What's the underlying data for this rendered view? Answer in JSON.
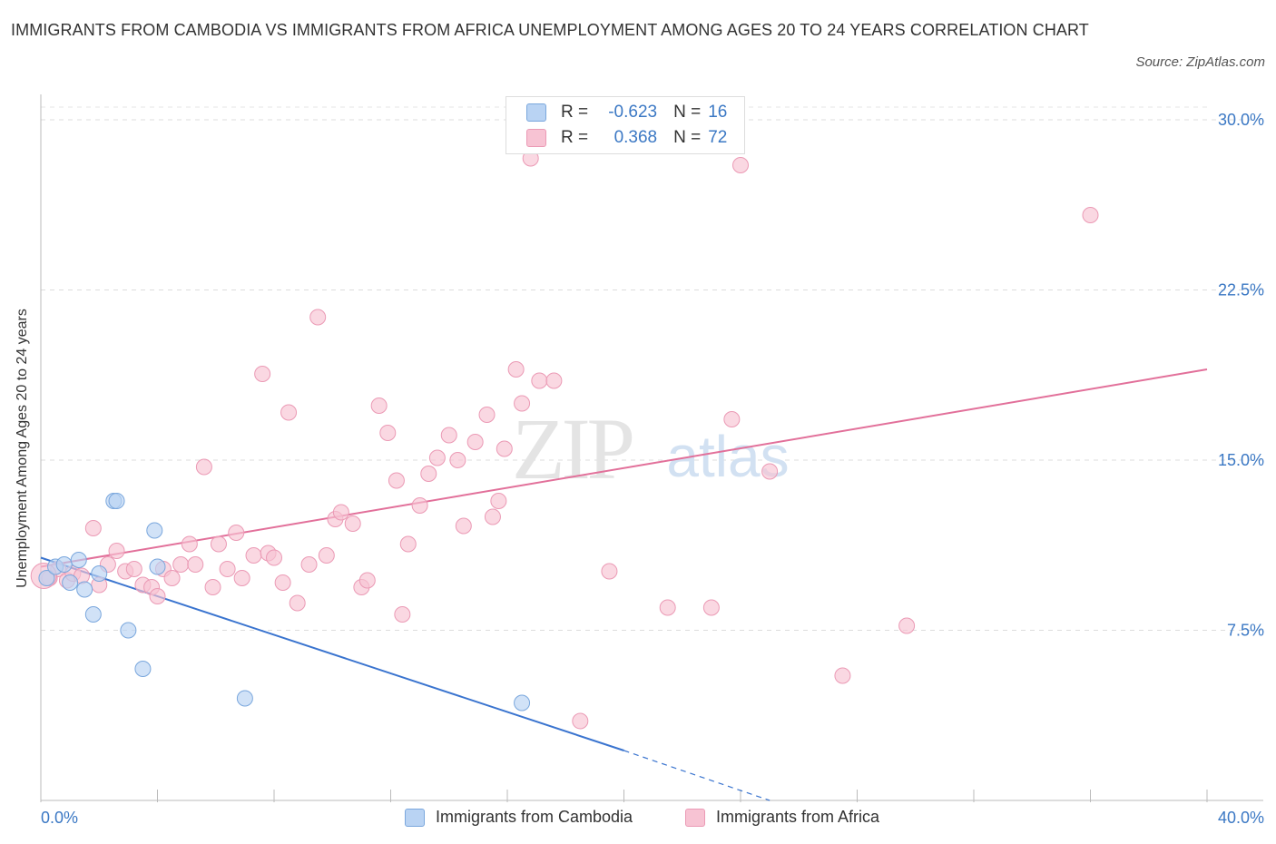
{
  "title": "IMMIGRANTS FROM CAMBODIA VS IMMIGRANTS FROM AFRICA UNEMPLOYMENT AMONG AGES 20 TO 24 YEARS CORRELATION CHART",
  "source": "Source: ZipAtlas.com",
  "watermark": {
    "zip": "ZIP",
    "atlas": "atlas"
  },
  "legend": {
    "cambodia": {
      "r_label": "R =",
      "r_value": "-0.623",
      "n_label": "N =",
      "n_value": "16"
    },
    "africa": {
      "r_label": "R =",
      "r_value": "0.368",
      "n_label": "N =",
      "n_value": "72"
    }
  },
  "colors": {
    "cambodia_fill": "#b9d3f3",
    "cambodia_stroke": "#7aa7dd",
    "cambodia_line": "#3a74cf",
    "africa_fill": "#f7c3d3",
    "africa_stroke": "#eb9ab5",
    "africa_line": "#e2709a",
    "axis_label": "#3b78c4"
  },
  "chart_data": {
    "type": "scatter",
    "title": "IMMIGRANTS FROM CAMBODIA VS IMMIGRANTS FROM AFRICA UNEMPLOYMENT AMONG AGES 20 TO 24 YEARS CORRELATION CHART",
    "xlabel": "",
    "ylabel": "Unemployment Among Ages 20 to 24 years",
    "xlim": [
      0,
      40
    ],
    "ylim": [
      0,
      30
    ],
    "x_tick_labels": [
      "0.0%",
      "40.0%"
    ],
    "y_tick_labels": [
      "7.5%",
      "15.0%",
      "22.5%",
      "30.0%"
    ],
    "y_ticks": [
      7.5,
      15,
      22.5,
      30
    ],
    "grid": true,
    "legend_position": "top-center",
    "series": [
      {
        "name": "Immigrants from Cambodia",
        "points": [
          [
            0.2,
            9.8
          ],
          [
            0.5,
            10.3
          ],
          [
            0.8,
            10.4
          ],
          [
            1.0,
            9.6
          ],
          [
            1.3,
            10.6
          ],
          [
            1.5,
            9.3
          ],
          [
            1.8,
            8.2
          ],
          [
            2.0,
            10.0
          ],
          [
            2.5,
            13.2
          ],
          [
            2.6,
            13.2
          ],
          [
            3.0,
            7.5
          ],
          [
            3.5,
            5.8
          ],
          [
            3.9,
            11.9
          ],
          [
            4.0,
            10.3
          ],
          [
            7.0,
            4.5
          ],
          [
            16.5,
            4.3
          ]
        ],
        "trend": {
          "x": [
            0,
            20
          ],
          "y": [
            10.7,
            2.2
          ],
          "dashed_to": [
            25,
            0
          ]
        }
      },
      {
        "name": "Immigrants from Africa",
        "points": [
          [
            0.3,
            9.8
          ],
          [
            0.6,
            10.2
          ],
          [
            0.9,
            9.7
          ],
          [
            1.1,
            10.0
          ],
          [
            1.4,
            9.9
          ],
          [
            1.8,
            12.0
          ],
          [
            2.0,
            9.5
          ],
          [
            2.3,
            10.4
          ],
          [
            2.6,
            11.0
          ],
          [
            2.9,
            10.1
          ],
          [
            3.2,
            10.2
          ],
          [
            3.5,
            9.5
          ],
          [
            3.8,
            9.4
          ],
          [
            4.0,
            9.0
          ],
          [
            4.2,
            10.2
          ],
          [
            4.5,
            9.8
          ],
          [
            4.8,
            10.4
          ],
          [
            5.1,
            11.3
          ],
          [
            5.3,
            10.4
          ],
          [
            5.6,
            14.7
          ],
          [
            5.9,
            9.4
          ],
          [
            6.1,
            11.3
          ],
          [
            6.4,
            10.2
          ],
          [
            6.7,
            11.8
          ],
          [
            6.9,
            9.8
          ],
          [
            7.3,
            10.8
          ],
          [
            7.6,
            18.8
          ],
          [
            7.8,
            10.9
          ],
          [
            8.0,
            10.7
          ],
          [
            8.3,
            9.6
          ],
          [
            8.5,
            17.1
          ],
          [
            8.8,
            8.7
          ],
          [
            9.2,
            10.4
          ],
          [
            9.5,
            21.3
          ],
          [
            9.8,
            10.8
          ],
          [
            10.1,
            12.4
          ],
          [
            10.3,
            12.7
          ],
          [
            10.7,
            12.2
          ],
          [
            11.0,
            9.4
          ],
          [
            11.2,
            9.7
          ],
          [
            11.6,
            17.4
          ],
          [
            11.9,
            16.2
          ],
          [
            12.2,
            14.1
          ],
          [
            12.4,
            8.2
          ],
          [
            12.6,
            11.3
          ],
          [
            13.0,
            13.0
          ],
          [
            13.3,
            14.4
          ],
          [
            13.6,
            15.1
          ],
          [
            14.0,
            16.1
          ],
          [
            14.3,
            15.0
          ],
          [
            14.5,
            12.1
          ],
          [
            14.9,
            15.8
          ],
          [
            15.3,
            17.0
          ],
          [
            15.5,
            12.5
          ],
          [
            15.7,
            13.2
          ],
          [
            15.9,
            15.5
          ],
          [
            16.3,
            19.0
          ],
          [
            16.5,
            17.5
          ],
          [
            16.8,
            28.3
          ],
          [
            17.1,
            18.5
          ],
          [
            17.6,
            18.5
          ],
          [
            18.5,
            3.5
          ],
          [
            19.5,
            10.1
          ],
          [
            21.5,
            8.5
          ],
          [
            23.0,
            8.5
          ],
          [
            23.7,
            16.8
          ],
          [
            24.0,
            28.0
          ],
          [
            25.0,
            14.5
          ],
          [
            27.5,
            5.5
          ],
          [
            29.7,
            7.7
          ],
          [
            36.0,
            25.8
          ],
          [
            0.1,
            9.9
          ]
        ],
        "trend": {
          "x": [
            0,
            40
          ],
          "y": [
            10.3,
            19.0
          ]
        }
      }
    ]
  }
}
